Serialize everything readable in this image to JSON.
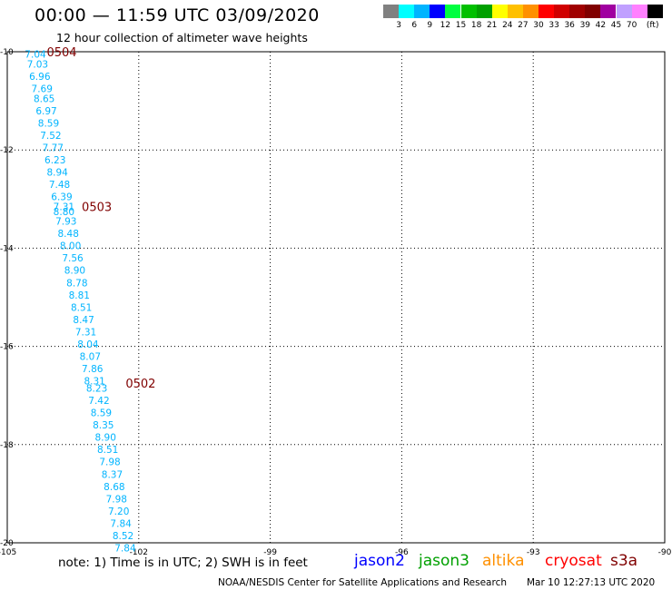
{
  "header": {
    "title": "00:00 — 11:59 UTC 03/09/2020",
    "subtitle": "12 hour collection of altimeter wave heights"
  },
  "colorbar": {
    "colors": [
      "#808080",
      "#00ffff",
      "#00b4ff",
      "#0000ff",
      "#00ff40",
      "#00c000",
      "#00a000",
      "#ffff00",
      "#ffc000",
      "#ff9000",
      "#ff0000",
      "#d00000",
      "#a00000",
      "#800000",
      "#a000a0",
      "#c0a0ff",
      "#ff80ff",
      "#000000"
    ],
    "labels": [
      "3",
      "6",
      "9",
      "12",
      "15",
      "18",
      "21",
      "24",
      "27",
      "30",
      "33",
      "36",
      "39",
      "42",
      "45",
      "70",
      "(ft)"
    ]
  },
  "map": {
    "lon_range": [
      -105,
      -90
    ],
    "lat_range": [
      -20,
      -10
    ],
    "x_ticks": [
      "-105",
      "-102",
      "-99",
      "-96",
      "-93",
      "-90"
    ],
    "y_ticks": [
      "-10",
      "-12",
      "-14",
      "-16",
      "-18",
      "-20"
    ],
    "label_color": "#00b4ff",
    "time_color": "#800000",
    "time_labels": [
      {
        "text": "0504",
        "lon": -104.1,
        "lat": -10.0
      },
      {
        "text": "0503",
        "lon": -103.3,
        "lat": -13.15
      },
      {
        "text": "0502",
        "lon": -102.3,
        "lat": -16.75
      }
    ],
    "wave_labels": [
      {
        "text": "7.04",
        "lon": -104.6,
        "lat": -10.05
      },
      {
        "text": "7.03",
        "lon": -104.55,
        "lat": -10.25
      },
      {
        "text": "6.96",
        "lon": -104.5,
        "lat": -10.5
      },
      {
        "text": "7.69",
        "lon": -104.45,
        "lat": -10.75
      },
      {
        "text": "8.65",
        "lon": -104.4,
        "lat": -10.95
      },
      {
        "text": "6.97",
        "lon": -104.35,
        "lat": -11.2
      },
      {
        "text": "8.59",
        "lon": -104.3,
        "lat": -11.45
      },
      {
        "text": "7.52",
        "lon": -104.25,
        "lat": -11.7
      },
      {
        "text": "7.77",
        "lon": -104.2,
        "lat": -11.95
      },
      {
        "text": "6.23",
        "lon": -104.15,
        "lat": -12.2
      },
      {
        "text": "8.94",
        "lon": -104.1,
        "lat": -12.45
      },
      {
        "text": "7.48",
        "lon": -104.05,
        "lat": -12.7
      },
      {
        "text": "6.39",
        "lon": -104.0,
        "lat": -12.95
      },
      {
        "text": "7.31",
        "lon": -103.95,
        "lat": -13.15
      },
      {
        "text": "8.80",
        "lon": -103.95,
        "lat": -13.25
      },
      {
        "text": "7.93",
        "lon": -103.9,
        "lat": -13.45
      },
      {
        "text": "8.48",
        "lon": -103.85,
        "lat": -13.7
      },
      {
        "text": "8.00",
        "lon": -103.8,
        "lat": -13.95
      },
      {
        "text": "7.56",
        "lon": -103.75,
        "lat": -14.2
      },
      {
        "text": "8.90",
        "lon": -103.7,
        "lat": -14.45
      },
      {
        "text": "8.78",
        "lon": -103.65,
        "lat": -14.7
      },
      {
        "text": "8.81",
        "lon": -103.6,
        "lat": -14.95
      },
      {
        "text": "8.51",
        "lon": -103.55,
        "lat": -15.2
      },
      {
        "text": "8.47",
        "lon": -103.5,
        "lat": -15.45
      },
      {
        "text": "7.31",
        "lon": -103.45,
        "lat": -15.7
      },
      {
        "text": "8.04",
        "lon": -103.4,
        "lat": -15.95
      },
      {
        "text": "8.07",
        "lon": -103.35,
        "lat": -16.2
      },
      {
        "text": "7.86",
        "lon": -103.3,
        "lat": -16.45
      },
      {
        "text": "8.31",
        "lon": -103.25,
        "lat": -16.7
      },
      {
        "text": "8.23",
        "lon": -103.2,
        "lat": -16.85
      },
      {
        "text": "7.42",
        "lon": -103.15,
        "lat": -17.1
      },
      {
        "text": "8.59",
        "lon": -103.1,
        "lat": -17.35
      },
      {
        "text": "8.35",
        "lon": -103.05,
        "lat": -17.6
      },
      {
        "text": "8.90",
        "lon": -103.0,
        "lat": -17.85
      },
      {
        "text": "8.51",
        "lon": -102.95,
        "lat": -18.1
      },
      {
        "text": "7.98",
        "lon": -102.9,
        "lat": -18.35
      },
      {
        "text": "8.37",
        "lon": -102.85,
        "lat": -18.6
      },
      {
        "text": "8.68",
        "lon": -102.8,
        "lat": -18.85
      },
      {
        "text": "7.98",
        "lon": -102.75,
        "lat": -19.1
      },
      {
        "text": "7.20",
        "lon": -102.7,
        "lat": -19.35
      },
      {
        "text": "7.84",
        "lon": -102.65,
        "lat": -19.6
      },
      {
        "text": "8.52",
        "lon": -102.6,
        "lat": -19.85
      },
      {
        "text": "7.84",
        "lon": -102.55,
        "lat": -20.1
      }
    ]
  },
  "footer": {
    "note": "note:  1) Time is in UTC;  2) SWH is in feet",
    "satellites": [
      {
        "name": "jason2",
        "color": "#0000ff"
      },
      {
        "name": "jason3",
        "color": "#00a000"
      },
      {
        "name": "altika",
        "color": "#ff9000"
      },
      {
        "name": "cryosat",
        "color": "#ff0000"
      },
      {
        "name": "s3a",
        "color": "#800000"
      }
    ],
    "credit": "NOAA/NESDIS Center for Satellite Applications and Research",
    "timestamp": "Mar 10 12:27:13 UTC 2020"
  }
}
